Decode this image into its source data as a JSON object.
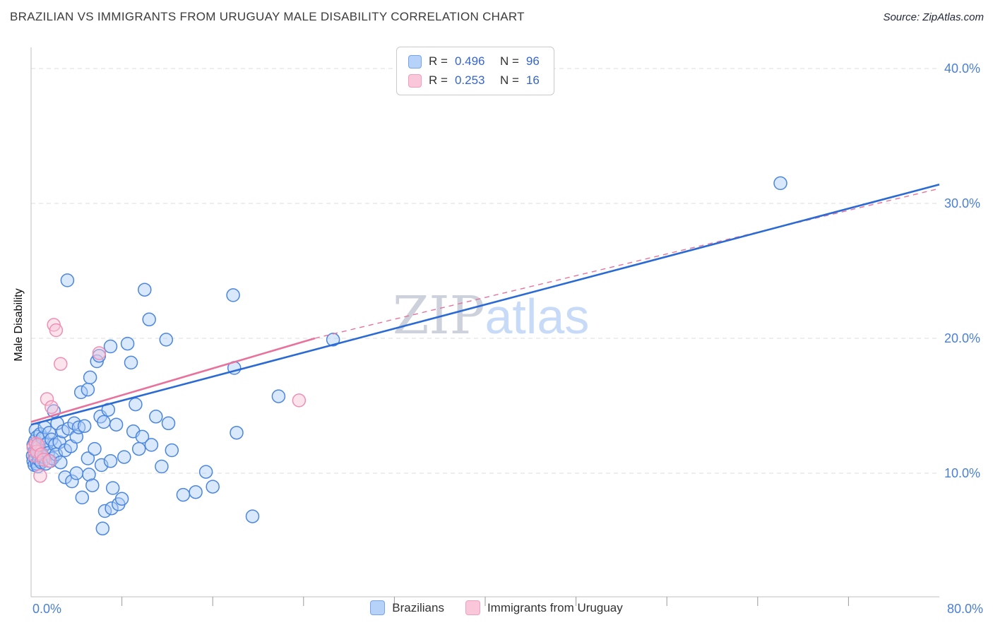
{
  "header": {
    "title": "BRAZILIAN VS IMMIGRANTS FROM URUGUAY MALE DISABILITY CORRELATION CHART",
    "source": "Source: ZipAtlas.com"
  },
  "watermark": {
    "part1": "ZIP",
    "part2": "atlas"
  },
  "stats_legend": {
    "items": [
      {
        "r_label": "R =",
        "r_value": "0.496",
        "n_label": "N =",
        "n_value": "96"
      },
      {
        "r_label": "R =",
        "r_value": "0.253",
        "n_label": "N =",
        "n_value": "16"
      }
    ]
  },
  "bottom_legend": {
    "items": [
      {
        "label": "Brazilians"
      },
      {
        "label": "Immigrants from Uruguay"
      }
    ]
  },
  "colors": {
    "blue_accent": "#3b6fd4",
    "blue_fill": "#aecbf7",
    "blue_stroke": "#4a86e0",
    "pink_fill": "#f9c3d7",
    "pink_stroke": "#ef8fb3",
    "trend_blue": "#2a6ad4",
    "trend_pink": "#e8729c",
    "grid": "#dddddd",
    "axis": "#bfbfbf",
    "tick_label": "#4a7fd4"
  },
  "chart_data": {
    "type": "scatter",
    "title": "BRAZILIAN VS IMMIGRANTS FROM URUGUAY MALE DISABILITY CORRELATION CHART",
    "xlabel": "",
    "ylabel": "Male Disability",
    "x_axis": {
      "min": 0,
      "max": 80,
      "tick_labels": [
        "0.0%",
        "80.0%"
      ],
      "minor_tick_step": 8
    },
    "y_axis": {
      "min": 0,
      "max": 42,
      "gridline_values": [
        40,
        30,
        20,
        10
      ],
      "tick_labels": [
        "40.0%",
        "30.0%",
        "20.0%",
        "10.0%"
      ]
    },
    "grid": true,
    "legend_position": "top-center",
    "series": [
      {
        "name": "Brazilians",
        "R": 0.496,
        "N": 96,
        "points": [
          [
            0.15,
            11.3
          ],
          [
            0.2,
            10.9
          ],
          [
            0.2,
            12.1
          ],
          [
            0.3,
            11.6
          ],
          [
            0.3,
            10.6
          ],
          [
            0.35,
            12.4
          ],
          [
            0.4,
            11.1
          ],
          [
            0.4,
            13.2
          ],
          [
            0.5,
            10.7
          ],
          [
            0.5,
            11.9
          ],
          [
            0.55,
            12.7
          ],
          [
            0.6,
            11.4
          ],
          [
            0.6,
            10.5
          ],
          [
            0.7,
            12.0
          ],
          [
            0.7,
            11.0
          ],
          [
            0.8,
            12.9
          ],
          [
            0.8,
            11.6
          ],
          [
            0.9,
            10.8
          ],
          [
            1.0,
            11.9
          ],
          [
            1.0,
            12.6
          ],
          [
            1.1,
            11.2
          ],
          [
            1.2,
            13.4
          ],
          [
            1.3,
            10.7
          ],
          [
            1.4,
            12.2
          ],
          [
            1.5,
            11.5
          ],
          [
            1.6,
            13.0
          ],
          [
            1.7,
            10.9
          ],
          [
            1.8,
            12.5
          ],
          [
            1.9,
            11.1
          ],
          [
            2.0,
            14.6
          ],
          [
            2.1,
            12.1
          ],
          [
            2.2,
            11.4
          ],
          [
            2.3,
            13.7
          ],
          [
            2.5,
            12.3
          ],
          [
            2.6,
            10.8
          ],
          [
            2.8,
            13.1
          ],
          [
            3.0,
            11.7
          ],
          [
            3.0,
            9.7
          ],
          [
            3.2,
            24.3
          ],
          [
            3.3,
            13.3
          ],
          [
            3.5,
            12.0
          ],
          [
            3.6,
            9.4
          ],
          [
            3.8,
            13.7
          ],
          [
            4.0,
            12.7
          ],
          [
            4.0,
            10.0
          ],
          [
            4.2,
            13.4
          ],
          [
            4.4,
            16.0
          ],
          [
            4.5,
            8.2
          ],
          [
            4.7,
            13.5
          ],
          [
            5.0,
            16.2
          ],
          [
            5.0,
            11.1
          ],
          [
            5.1,
            9.9
          ],
          [
            5.2,
            17.1
          ],
          [
            5.4,
            9.1
          ],
          [
            5.6,
            11.8
          ],
          [
            5.8,
            18.3
          ],
          [
            6.0,
            18.7
          ],
          [
            6.1,
            14.2
          ],
          [
            6.2,
            10.6
          ],
          [
            6.3,
            5.9
          ],
          [
            6.4,
            13.8
          ],
          [
            6.5,
            7.2
          ],
          [
            6.8,
            14.7
          ],
          [
            7.0,
            19.4
          ],
          [
            7.0,
            10.9
          ],
          [
            7.1,
            7.4
          ],
          [
            7.2,
            8.9
          ],
          [
            7.5,
            13.6
          ],
          [
            7.7,
            7.7
          ],
          [
            8.0,
            8.1
          ],
          [
            8.2,
            11.2
          ],
          [
            8.5,
            19.6
          ],
          [
            8.8,
            18.2
          ],
          [
            9.0,
            13.1
          ],
          [
            9.2,
            15.1
          ],
          [
            9.5,
            11.8
          ],
          [
            9.8,
            12.7
          ],
          [
            10.0,
            23.6
          ],
          [
            10.4,
            21.4
          ],
          [
            10.6,
            12.1
          ],
          [
            11.0,
            14.2
          ],
          [
            11.5,
            10.5
          ],
          [
            11.9,
            19.9
          ],
          [
            12.1,
            13.7
          ],
          [
            12.4,
            11.7
          ],
          [
            13.4,
            8.4
          ],
          [
            14.5,
            8.6
          ],
          [
            15.4,
            10.1
          ],
          [
            16.0,
            9.0
          ],
          [
            17.8,
            23.2
          ],
          [
            17.9,
            17.8
          ],
          [
            18.1,
            13.0
          ],
          [
            19.5,
            6.8
          ],
          [
            21.8,
            15.7
          ],
          [
            26.6,
            19.9
          ],
          [
            66.0,
            31.5
          ]
        ]
      },
      {
        "name": "Immigrants from Uruguay",
        "R": 0.253,
        "N": 16,
        "points": [
          [
            0.2,
            11.9
          ],
          [
            0.3,
            11.3
          ],
          [
            0.4,
            12.2
          ],
          [
            0.5,
            11.6
          ],
          [
            0.6,
            12.1
          ],
          [
            0.8,
            9.8
          ],
          [
            0.9,
            11.4
          ],
          [
            1.1,
            11.0
          ],
          [
            1.4,
            15.5
          ],
          [
            1.6,
            10.9
          ],
          [
            1.8,
            14.9
          ],
          [
            2.0,
            21.0
          ],
          [
            2.2,
            20.6
          ],
          [
            2.6,
            18.1
          ],
          [
            6.0,
            18.9
          ],
          [
            23.6,
            15.4
          ]
        ]
      }
    ],
    "trend_lines": [
      {
        "series_index": 1,
        "style": "dashed",
        "from": [
          25,
          20.0
        ],
        "to": [
          80,
          31.1
        ]
      },
      {
        "series_index": 1,
        "style": "solid",
        "from": [
          0,
          13.8
        ],
        "to": [
          25,
          20.0
        ]
      },
      {
        "series_index": 0,
        "style": "solid",
        "from": [
          0,
          13.6
        ],
        "to": [
          80,
          31.4
        ]
      }
    ]
  }
}
